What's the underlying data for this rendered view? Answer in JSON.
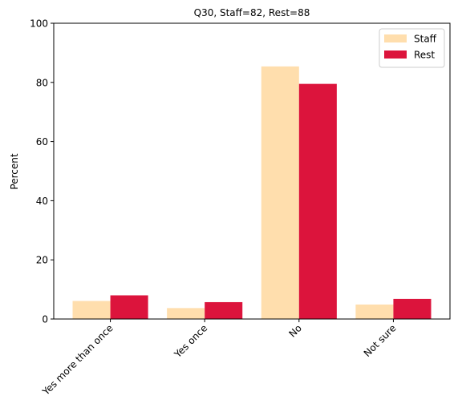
{
  "chart_data": {
    "type": "bar",
    "title": "Q30, Staff=82, Rest=88",
    "xlabel": "",
    "ylabel": "Percent",
    "ylim": [
      0,
      100
    ],
    "yticks": [
      "0",
      "20",
      "40",
      "60",
      "80",
      "100"
    ],
    "categories": [
      "Yes more than once",
      "Yes once",
      "No",
      "Not sure"
    ],
    "series": [
      {
        "name": "Staff",
        "color": "#FFDEAD",
        "values": [
          6.1,
          3.7,
          85.4,
          4.9
        ]
      },
      {
        "name": "Rest",
        "color": "#DC143C",
        "values": [
          8.0,
          5.7,
          79.5,
          6.8
        ]
      }
    ],
    "legend": "top-right",
    "grid": false
  }
}
